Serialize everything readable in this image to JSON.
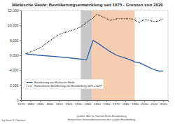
{
  "chart_data": {
    "type": "line",
    "title": "Märkische Heide: Bevölkerungsentwicklung seit 1875 - Grenzen von 2020",
    "xlim": [
      1870,
      2025
    ],
    "xticks": [
      1870,
      1880,
      1890,
      1900,
      1910,
      1920,
      1930,
      1940,
      1950,
      1960,
      1970,
      1980,
      1990,
      2000,
      2010,
      2020
    ],
    "ylim": [
      0,
      12000
    ],
    "yticks": [
      0,
      {
        "value": 2000,
        "label": "2,000"
      },
      {
        "value": 4000,
        "label": "4,000"
      },
      {
        "value": 6000,
        "label": "6,000"
      },
      {
        "value": 8000,
        "label": "8,000"
      },
      {
        "value": 10000,
        "label": "10,000"
      },
      {
        "value": 12000,
        "label": "12,000"
      }
    ],
    "grid": false,
    "legend": "lower left",
    "bands": [
      {
        "start": 1933,
        "end": 1945,
        "color": "#c8c8c8"
      },
      {
        "start": 1945,
        "end": 1990,
        "color": "#f6cdb0"
      }
    ],
    "series": [
      {
        "name": "Bevölkerung von Märkische Heide",
        "color": "#2a5ea8",
        "line_style": "solid",
        "x": [
          1875,
          1890,
          1910,
          1925,
          1933,
          1939,
          1946,
          1950,
          1964,
          1971,
          1981,
          1985,
          1989,
          1990,
          1995,
          2000,
          2005,
          2010,
          2015,
          2020
        ],
        "values": [
          6200,
          6000,
          5800,
          5600,
          5500,
          5400,
          8000,
          7700,
          6500,
          6000,
          5600,
          5400,
          5200,
          5100,
          5000,
          4700,
          4400,
          4100,
          3900,
          3900
        ]
      },
      {
        "name": "Normalisierte Bevölkerung von Brandenburg 1875 = 6297",
        "color": "#000000",
        "line_style": "dotted",
        "x": [
          1875,
          1890,
          1910,
          1925,
          1933,
          1939,
          1946,
          1950,
          1964,
          1971,
          1981,
          1985,
          1989,
          1990,
          1995,
          2000,
          2005,
          2010,
          2015,
          2020
        ],
        "values": [
          6200,
          7000,
          8800,
          9400,
          9800,
          10400,
          11000,
          11500,
          10700,
          10900,
          10900,
          10900,
          10800,
          10700,
          10400,
          10800,
          10700,
          10500,
          10600,
          10900
        ]
      }
    ],
    "author": "by Hans G. Oberlack",
    "source": [
      "Quellen: Amt für Statistik Berlin-Brandenburg",
      "Historisches Gemeindeverzeichnis des Landes Brandenburg"
    ]
  }
}
